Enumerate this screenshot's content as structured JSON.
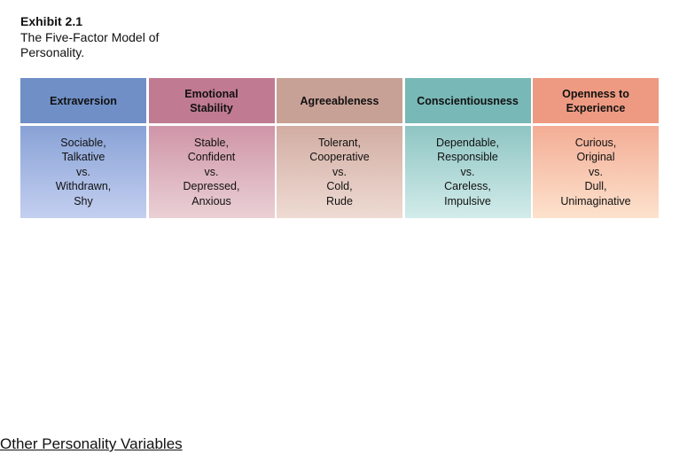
{
  "exhibit": {
    "label": "Exhibit 2.1",
    "caption": "The Five-Factor Model of Personality."
  },
  "table": {
    "columns": [
      {
        "header": "Extraversion",
        "traits": [
          "Sociable,",
          "Talkative",
          "vs.",
          "Withdrawn,",
          "Shy"
        ],
        "header_color": "#6f8fc6",
        "body_color_top": "#88a2d6",
        "body_color_bottom": "#c4cff0"
      },
      {
        "header": "Emotional Stability",
        "traits": [
          "Stable,",
          "Confident",
          "vs.",
          "Depressed,",
          "Anxious"
        ],
        "header_color": "#c07a92",
        "body_color_top": "#cf95a8",
        "body_color_bottom": "#ead0d5"
      },
      {
        "header": "Agreeableness",
        "traits": [
          "Tolerant,",
          "Cooperative",
          "vs.",
          "Cold,",
          "Rude"
        ],
        "header_color": "#c8a196",
        "body_color_top": "#d2ada3",
        "body_color_bottom": "#eedbd3"
      },
      {
        "header": "Conscientiousness",
        "traits": [
          "Dependable,",
          "Responsible",
          "vs.",
          "Careless,",
          "Impulsive"
        ],
        "header_color": "#78b8b6",
        "body_color_top": "#8ec5c3",
        "body_color_bottom": "#d2ecea"
      },
      {
        "header": "Openness to Experience",
        "traits": [
          "Curious,",
          "Original",
          "vs.",
          "Dull,",
          "Unimaginative"
        ],
        "header_color": "#ee9a82",
        "body_color_top": "#f3ad95",
        "body_color_bottom": "#fde2cd"
      }
    ]
  },
  "footer": {
    "link_text": "Other Personality Variables"
  }
}
